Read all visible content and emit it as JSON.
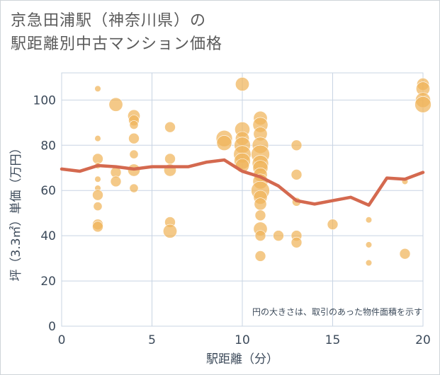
{
  "title": {
    "line1": "京急田浦駅（神奈川県）の",
    "line2": "駅距離別中古マンション価格"
  },
  "chart_data": {
    "type": "scatter",
    "xlabel": "駅距離（分）",
    "ylabel": "坪（3.3㎡）単価（万円）",
    "xlim": [
      0,
      20
    ],
    "ylim": [
      0,
      112
    ],
    "xticks": [
      0,
      5,
      10,
      15,
      20
    ],
    "yticks": [
      0,
      20,
      40,
      60,
      80,
      100
    ],
    "grid": true,
    "note": "円の大きさは、取引のあった物件面積を示す",
    "colors": {
      "bubble": "#f0b45a",
      "line": "#d4694f",
      "grid": "#c8d4e3"
    },
    "points": [
      {
        "x": 2,
        "y": 105,
        "s": 1
      },
      {
        "x": 2,
        "y": 83,
        "s": 1
      },
      {
        "x": 2,
        "y": 74,
        "s": 3
      },
      {
        "x": 2,
        "y": 71,
        "s": 1
      },
      {
        "x": 2,
        "y": 65,
        "s": 1
      },
      {
        "x": 2,
        "y": 61,
        "s": 1
      },
      {
        "x": 2,
        "y": 58,
        "s": 3
      },
      {
        "x": 2,
        "y": 53,
        "s": 2
      },
      {
        "x": 2,
        "y": 45,
        "s": 3
      },
      {
        "x": 2,
        "y": 44,
        "s": 3
      },
      {
        "x": 3,
        "y": 98,
        "s": 5
      },
      {
        "x": 3,
        "y": 68,
        "s": 3
      },
      {
        "x": 3,
        "y": 64,
        "s": 3
      },
      {
        "x": 4,
        "y": 93,
        "s": 4
      },
      {
        "x": 4,
        "y": 91,
        "s": 3
      },
      {
        "x": 4,
        "y": 89,
        "s": 2
      },
      {
        "x": 4,
        "y": 83,
        "s": 3
      },
      {
        "x": 4,
        "y": 76,
        "s": 2
      },
      {
        "x": 4,
        "y": 69,
        "s": 4
      },
      {
        "x": 4,
        "y": 61,
        "s": 2
      },
      {
        "x": 6,
        "y": 88,
        "s": 3
      },
      {
        "x": 6,
        "y": 74,
        "s": 3
      },
      {
        "x": 6,
        "y": 69,
        "s": 4
      },
      {
        "x": 6,
        "y": 46,
        "s": 3
      },
      {
        "x": 6,
        "y": 42,
        "s": 5
      },
      {
        "x": 9,
        "y": 83,
        "s": 7
      },
      {
        "x": 9,
        "y": 81,
        "s": 6
      },
      {
        "x": 10,
        "y": 107,
        "s": 5
      },
      {
        "x": 10,
        "y": 87,
        "s": 6
      },
      {
        "x": 10,
        "y": 83,
        "s": 5
      },
      {
        "x": 10,
        "y": 80,
        "s": 7
      },
      {
        "x": 10,
        "y": 76,
        "s": 8
      },
      {
        "x": 10,
        "y": 73,
        "s": 7
      },
      {
        "x": 10,
        "y": 71,
        "s": 5
      },
      {
        "x": 11,
        "y": 92,
        "s": 5
      },
      {
        "x": 11,
        "y": 89,
        "s": 6
      },
      {
        "x": 11,
        "y": 85,
        "s": 5
      },
      {
        "x": 11,
        "y": 80,
        "s": 7
      },
      {
        "x": 11,
        "y": 76,
        "s": 9
      },
      {
        "x": 11,
        "y": 72,
        "s": 7
      },
      {
        "x": 11,
        "y": 70,
        "s": 6
      },
      {
        "x": 11,
        "y": 67,
        "s": 5
      },
      {
        "x": 11,
        "y": 64,
        "s": 6
      },
      {
        "x": 11,
        "y": 60,
        "s": 9
      },
      {
        "x": 11,
        "y": 57,
        "s": 5
      },
      {
        "x": 11,
        "y": 54,
        "s": 4
      },
      {
        "x": 11,
        "y": 49,
        "s": 3
      },
      {
        "x": 11,
        "y": 43,
        "s": 5
      },
      {
        "x": 11,
        "y": 40,
        "s": 3
      },
      {
        "x": 11,
        "y": 31,
        "s": 3
      },
      {
        "x": 12,
        "y": 40,
        "s": 3
      },
      {
        "x": 13,
        "y": 80,
        "s": 3
      },
      {
        "x": 13,
        "y": 67,
        "s": 3
      },
      {
        "x": 13,
        "y": 55,
        "s": 2
      },
      {
        "x": 13,
        "y": 40,
        "s": 3
      },
      {
        "x": 13,
        "y": 37,
        "s": 3
      },
      {
        "x": 15,
        "y": 45,
        "s": 3
      },
      {
        "x": 17,
        "y": 47,
        "s": 1
      },
      {
        "x": 17,
        "y": 36,
        "s": 1
      },
      {
        "x": 17,
        "y": 28,
        "s": 1
      },
      {
        "x": 19,
        "y": 64,
        "s": 1
      },
      {
        "x": 19,
        "y": 32,
        "s": 3
      },
      {
        "x": 20,
        "y": 107,
        "s": 4
      },
      {
        "x": 20,
        "y": 105,
        "s": 5
      },
      {
        "x": 20,
        "y": 100,
        "s": 6
      },
      {
        "x": 20,
        "y": 98,
        "s": 7
      }
    ],
    "line": {
      "x": [
        0,
        1,
        2,
        3,
        4,
        5,
        6,
        7,
        8,
        9,
        10,
        11,
        12,
        13,
        14,
        15,
        16,
        17,
        18,
        19,
        20
      ],
      "y": [
        69.5,
        68.5,
        71,
        70.5,
        69.5,
        70.5,
        70.5,
        70.5,
        72.5,
        73.5,
        68.5,
        66,
        62,
        55.5,
        54,
        55.5,
        57,
        53.5,
        65.5,
        65,
        68
      ]
    }
  }
}
